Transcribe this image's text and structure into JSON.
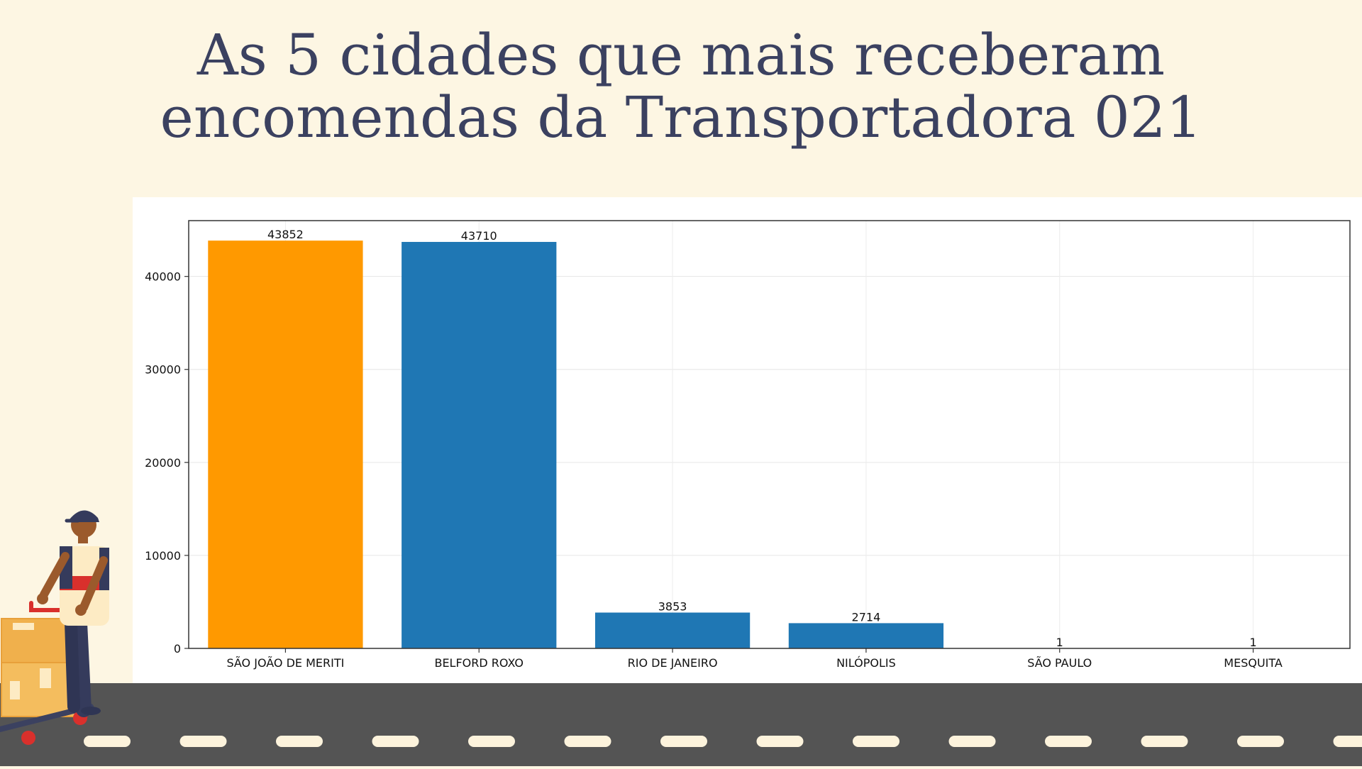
{
  "slide": {
    "title_lines": [
      "As 5 cidades que mais receberam",
      "encomendas da Transportadora 021"
    ]
  },
  "colors": {
    "background": "#fdf6e3",
    "title": "#3b4160",
    "highlight_bar": "#ff9900",
    "bar": "#1f77b4",
    "road": "#545454",
    "road_marking": "#fdf3dc"
  },
  "chart_data": {
    "type": "bar",
    "title": "",
    "xlabel": "",
    "ylabel": "",
    "categories": [
      "SÃO JOÃO DE MERITI",
      "BELFORD ROXO",
      "RIO DE JANEIRO",
      "NILÓPOLIS",
      "SÃO PAULO",
      "MESQUITA"
    ],
    "values": [
      43852,
      43710,
      3853,
      2714,
      1,
      1
    ],
    "highlight_index": 0,
    "ylim": [
      0,
      46000
    ],
    "yticks": [
      0,
      10000,
      20000,
      30000,
      40000
    ],
    "grid": true,
    "legend": "none"
  },
  "illustration": {
    "icon": "delivery-worker-with-hand-truck-icon"
  }
}
